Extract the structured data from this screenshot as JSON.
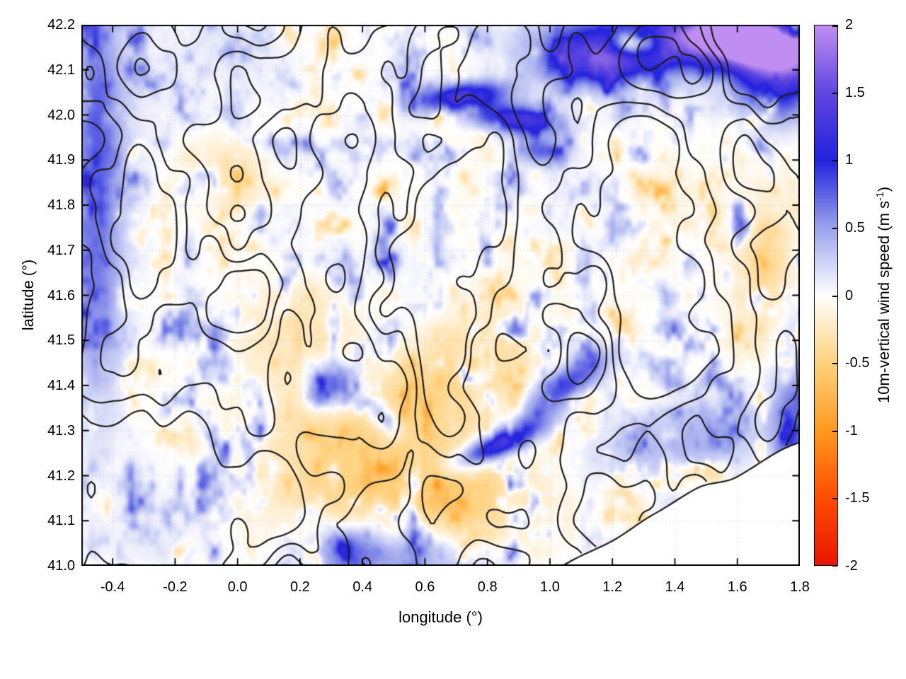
{
  "chart_data": {
    "type": "heatmap",
    "title": "",
    "xlabel": "longitude (°)",
    "ylabel": "latitude (°)",
    "xlim": [
      -0.5,
      1.8
    ],
    "ylim": [
      41.0,
      42.2
    ],
    "x_ticks": [
      -0.4,
      -0.2,
      0.0,
      0.2,
      0.4,
      0.6,
      0.8,
      1.0,
      1.2,
      1.4,
      1.6,
      1.8
    ],
    "x_tick_labels": [
      "-0.4",
      "-0.2",
      "0.0",
      "0.2",
      "0.4",
      "0.6",
      "0.8",
      "1.0",
      "1.2",
      "1.4",
      "1.6",
      "1.8"
    ],
    "y_ticks": [
      41.0,
      41.1,
      41.2,
      41.3,
      41.4,
      41.5,
      41.6,
      41.7,
      41.8,
      41.9,
      42.0,
      42.1,
      42.2
    ],
    "y_tick_labels": [
      "41.0",
      "41.1",
      "41.2",
      "41.3",
      "41.4",
      "41.5",
      "41.6",
      "41.7",
      "41.8",
      "41.9",
      "42.0",
      "42.1",
      "42.2"
    ],
    "grid": {
      "show": true,
      "style": "dotted",
      "color": "#9e9e9e"
    },
    "background": "#ffffff",
    "border_color": "#000000",
    "colorbar": {
      "label_prefix": "10m-vertical wind speed (m s",
      "label_sup": "-1",
      "label_suffix": ")",
      "range": [
        -2,
        2
      ],
      "ticks": [
        -2,
        -1.5,
        -1,
        -0.5,
        0,
        0.5,
        1,
        1.5,
        2
      ],
      "tick_labels": [
        "-2",
        "-1.5",
        "-1",
        "-0.5",
        "0",
        "0.5",
        "1",
        "1.5",
        "2"
      ],
      "stops": [
        {
          "value": -2.0,
          "color": "#e81500"
        },
        {
          "value": -1.5,
          "color": "#ff4d00"
        },
        {
          "value": -1.0,
          "color": "#ff9a1e"
        },
        {
          "value": -0.5,
          "color": "#ffd27e"
        },
        {
          "value": 0.0,
          "color": "#ffffff"
        },
        {
          "value": 0.5,
          "color": "#9aa3ec"
        },
        {
          "value": 1.0,
          "color": "#2222dd"
        },
        {
          "value": 1.5,
          "color": "#5f46e0"
        },
        {
          "value": 2.0,
          "color": "#c08ef2"
        }
      ]
    },
    "field": {
      "units": "m/s",
      "description": "Mostly near-zero field with fine blue/orange speckle; strong positive (blue) bands along the northern edge and in two SW-NE streaks; weak negative (orange) patches in the central-southern interior; blank no-data wedge in the lower-right corner.",
      "background_base": 0.04,
      "speckle_amplitude": 0.85,
      "speckle_wavelength_deg": 0.08,
      "broad_bias_amplitude": 0.18,
      "broad_bias_wavelength_deg": 0.55,
      "feature_format": [
        "lon",
        "lat",
        "sigma_lon",
        "sigma_lat",
        "amplitude",
        "rotation_deg"
      ],
      "features": [
        [
          1.5,
          42.17,
          0.28,
          0.05,
          1.6,
          0
        ],
        [
          1.68,
          42.15,
          0.14,
          0.045,
          1.6,
          -10
        ],
        [
          1.15,
          42.12,
          0.12,
          0.04,
          1.2,
          0
        ],
        [
          1.72,
          42.05,
          0.1,
          0.05,
          0.9,
          0
        ],
        [
          1.27,
          42.16,
          0.05,
          0.02,
          -1.6,
          0
        ],
        [
          1.79,
          42.19,
          0.04,
          0.018,
          -1.1,
          0
        ],
        [
          0.72,
          42.04,
          0.1,
          0.022,
          1.4,
          5
        ],
        [
          0.88,
          41.99,
          0.09,
          0.022,
          1.3,
          -5
        ],
        [
          0.97,
          41.92,
          0.05,
          0.02,
          0.7,
          0
        ],
        [
          0.84,
          41.27,
          0.1,
          0.022,
          1.5,
          16
        ],
        [
          1.05,
          41.4,
          0.12,
          0.03,
          0.9,
          25
        ],
        [
          1.45,
          41.28,
          0.25,
          0.06,
          0.45,
          8
        ],
        [
          0.3,
          41.4,
          0.05,
          0.035,
          1.0,
          0
        ],
        [
          0.46,
          41.33,
          0.05,
          0.02,
          0.6,
          -30
        ],
        [
          0.45,
          41.28,
          0.3,
          0.14,
          -0.5,
          0
        ],
        [
          0.62,
          41.12,
          0.25,
          0.09,
          -0.45,
          0
        ],
        [
          0.75,
          41.45,
          0.2,
          0.08,
          -0.35,
          15
        ],
        [
          0.2,
          41.55,
          0.15,
          0.08,
          -0.3,
          0
        ],
        [
          -0.05,
          41.87,
          0.12,
          0.06,
          -0.3,
          0
        ],
        [
          1.7,
          41.65,
          0.08,
          0.12,
          -0.4,
          0
        ],
        [
          -0.45,
          41.68,
          0.06,
          0.25,
          0.55,
          0
        ],
        [
          -0.45,
          42.05,
          0.06,
          0.15,
          0.5,
          0
        ],
        [
          1.78,
          41.35,
          0.05,
          0.2,
          0.55,
          0
        ],
        [
          0.55,
          41.02,
          0.2,
          0.05,
          0.55,
          0
        ],
        [
          0.35,
          41.04,
          0.08,
          0.04,
          0.55,
          0
        ]
      ],
      "no_data_boundary": {
        "start_lon": 1.06,
        "slope_lat_per_lon": 0.38,
        "description": "white no-data wedge below this line in the lower-right corner"
      }
    },
    "contours": {
      "description": "black terrain-elevation-style wiggly contour lines overlaid on the heatmap",
      "color": "#1c1c1c",
      "line_width": 2.2,
      "levels": [
        0.4,
        0.5,
        0.6,
        0.68
      ],
      "wavelength_deg": 0.34
    }
  }
}
